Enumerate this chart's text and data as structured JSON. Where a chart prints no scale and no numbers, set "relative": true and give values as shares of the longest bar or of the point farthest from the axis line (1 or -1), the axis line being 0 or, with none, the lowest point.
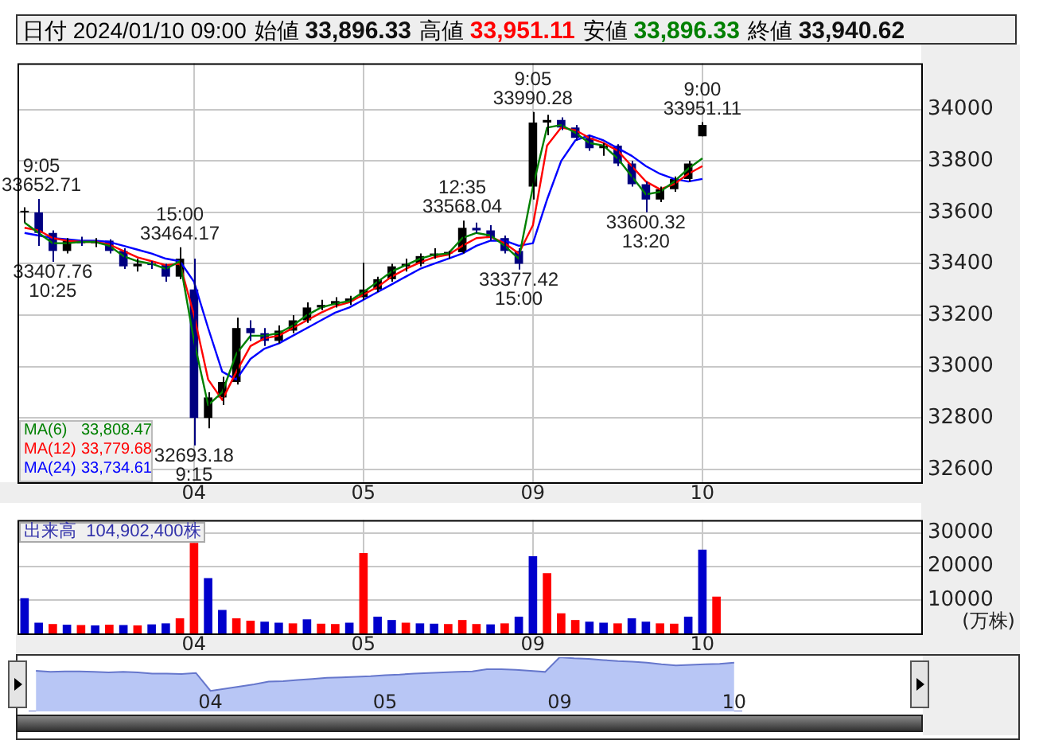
{
  "chart_data": [
    {
      "type": "candlestick",
      "title": "日付 2024/01/10 09:00",
      "annotations": [
        "始値 33,896.33",
        "高値 33,951.11",
        "安値 33,896.33",
        "終値 33,940.62",
        {
          "text": "9:05\n33652.71",
          "y": 33652.71
        },
        {
          "text": "33407.76\n10:25",
          "y": 33407.76
        },
        {
          "text": "15:00\n33464.17",
          "y": 33464.17
        },
        {
          "text": "32693.18\n9:15",
          "y": 32693.18
        },
        {
          "text": "12:35\n33568.04",
          "y": 33568.04
        },
        {
          "text": "33377.42\n15:00",
          "y": 33377.42
        },
        {
          "text": "9:05\n33990.28",
          "y": 33990.28
        },
        {
          "text": "33600.32\n13:20",
          "y": 33600.32
        },
        {
          "text": "9:00\n33951.11",
          "y": 33951.11
        }
      ],
      "categories": [
        null,
        null,
        null,
        null,
        null,
        null,
        null,
        null,
        null,
        null,
        null,
        null,
        "04",
        null,
        null,
        null,
        null,
        null,
        null,
        null,
        null,
        null,
        null,
        null,
        "05",
        null,
        null,
        null,
        null,
        null,
        null,
        null,
        null,
        null,
        null,
        null,
        "09",
        null,
        null,
        null,
        null,
        null,
        null,
        null,
        null,
        null,
        null,
        null,
        "10",
        null,
        null,
        null,
        null,
        null,
        null,
        null,
        null,
        null,
        null,
        null,
        null,
        null,
        null,
        null
      ],
      "ohlc": [
        [
          33600,
          33620,
          33560,
          33600
        ],
        [
          33600,
          33652.71,
          33470,
          33520
        ],
        [
          33520,
          33530,
          33407.76,
          33450
        ],
        [
          33450,
          33500,
          33440,
          33490
        ],
        [
          33490,
          33505,
          33470,
          33480
        ],
        [
          33480,
          33500,
          33465,
          33490
        ],
        [
          33490,
          33495,
          33440,
          33450
        ],
        [
          33450,
          33460,
          33380,
          33390
        ],
        [
          33390,
          33420,
          33370,
          33400
        ],
        [
          33400,
          33410,
          33380,
          33395
        ],
        [
          33395,
          33400,
          33330,
          33350
        ],
        [
          33350,
          33464.17,
          33340,
          33420
        ],
        [
          33300,
          33420,
          32693.18,
          32800
        ],
        [
          32800,
          32900,
          32760,
          32880
        ],
        [
          32880,
          32960,
          32850,
          32940
        ],
        [
          32940,
          33190,
          32930,
          33150
        ],
        [
          33150,
          33180,
          33100,
          33130
        ],
        [
          33130,
          33150,
          33080,
          33100
        ],
        [
          33100,
          33160,
          33090,
          33140
        ],
        [
          33140,
          33200,
          33130,
          33180
        ],
        [
          33180,
          33250,
          33170,
          33230
        ],
        [
          33230,
          33260,
          33220,
          33240
        ],
        [
          33240,
          33270,
          33230,
          33255
        ],
        [
          33255,
          33275,
          33240,
          33265
        ],
        [
          33270,
          33404,
          33260,
          33300
        ],
        [
          33300,
          33350,
          33290,
          33340
        ],
        [
          33340,
          33400,
          33330,
          33390
        ],
        [
          33390,
          33420,
          33370,
          33400
        ],
        [
          33400,
          33440,
          33390,
          33430
        ],
        [
          33430,
          33460,
          33420,
          33440
        ],
        [
          33440,
          33450,
          33420,
          33445
        ],
        [
          33445,
          33568.04,
          33440,
          33540
        ],
        [
          33540,
          33560,
          33520,
          33530
        ],
        [
          33530,
          33550,
          33490,
          33500
        ],
        [
          33500,
          33510,
          33440,
          33450
        ],
        [
          33450,
          33460,
          33377.42,
          33400
        ],
        [
          33700,
          33990.28,
          33650,
          33950
        ],
        [
          33950,
          33980,
          33900,
          33960
        ],
        [
          33960,
          33970,
          33920,
          33930
        ],
        [
          33930,
          33940,
          33880,
          33890
        ],
        [
          33890,
          33900,
          33840,
          33850
        ],
        [
          33850,
          33870,
          33820,
          33860
        ],
        [
          33860,
          33865,
          33780,
          33790
        ],
        [
          33790,
          33800,
          33700,
          33710
        ],
        [
          33710,
          33720,
          33600.32,
          33650
        ],
        [
          33650,
          33700,
          33640,
          33690
        ],
        [
          33690,
          33740,
          33680,
          33730
        ],
        [
          33730,
          33800,
          33720,
          33790
        ],
        [
          33896.33,
          33951.11,
          33896.33,
          33940.62
        ],
        null,
        null,
        null,
        null,
        null,
        null,
        null,
        null,
        null,
        null,
        null,
        null,
        null,
        null,
        null
      ],
      "series": [
        {
          "type": "line",
          "name": "MA(6) 33,808.47",
          "color": "#008000",
          "values": [
            33560,
            33520,
            33480,
            33480,
            33485,
            33485,
            33470,
            33430,
            33410,
            33400,
            33380,
            33410,
            33100,
            32850,
            32900,
            33050,
            33120,
            33120,
            33130,
            33160,
            33200,
            33230,
            33245,
            33255,
            33290,
            33330,
            33370,
            33395,
            33420,
            33435,
            33440,
            33500,
            33520,
            33510,
            33470,
            33420,
            33700,
            33930,
            33940,
            33910,
            33870,
            33860,
            33810,
            33740,
            33670,
            33680,
            33720,
            33770,
            33810,
            null,
            null,
            null,
            null,
            null,
            null,
            null,
            null,
            null,
            null,
            null,
            null,
            null,
            null,
            null
          ]
        },
        {
          "type": "line",
          "name": "MA(12) 33,779.68",
          "color": "#ff0000",
          "values": [
            33540,
            33530,
            33500,
            33490,
            33485,
            33485,
            33475,
            33450,
            33425,
            33410,
            33395,
            33400,
            33200,
            32950,
            32870,
            32980,
            33080,
            33110,
            33120,
            33150,
            33180,
            33210,
            33235,
            33250,
            33280,
            33310,
            33350,
            33380,
            33405,
            33425,
            33435,
            33470,
            33500,
            33505,
            33480,
            33440,
            33550,
            33860,
            33930,
            33920,
            33890,
            33870,
            33840,
            33780,
            33720,
            33690,
            33710,
            33750,
            33780,
            null,
            null,
            null,
            null,
            null,
            null,
            null,
            null,
            null,
            null,
            null,
            null,
            null,
            null,
            null
          ]
        },
        {
          "type": "line",
          "name": "MA(24) 33,734.61",
          "color": "#0000ff",
          "values": [
            33520,
            33510,
            33500,
            33495,
            33490,
            33490,
            33485,
            33470,
            33455,
            33440,
            33420,
            33410,
            33330,
            33150,
            32980,
            32950,
            33030,
            33070,
            33090,
            33120,
            33150,
            33180,
            33210,
            33230,
            33260,
            33290,
            33320,
            33350,
            33380,
            33400,
            33420,
            33440,
            33470,
            33490,
            33490,
            33470,
            33480,
            33650,
            33800,
            33880,
            33900,
            33880,
            33850,
            33820,
            33780,
            33750,
            33730,
            33720,
            33730,
            null,
            null,
            null,
            null,
            null,
            null,
            null,
            null,
            null,
            null,
            null,
            null,
            null,
            null,
            null
          ]
        }
      ],
      "ylim": [
        32550,
        34180
      ],
      "yticks": [
        32600,
        32800,
        33000,
        33200,
        33400,
        33600,
        33800,
        34000
      ],
      "grid": true,
      "legend": "bottom left"
    },
    {
      "type": "bar",
      "title": "出来高 104,902,400株",
      "ylabel": "(万株)",
      "categories": [
        null,
        null,
        null,
        null,
        null,
        null,
        null,
        null,
        null,
        null,
        null,
        null,
        "04",
        null,
        null,
        null,
        null,
        null,
        null,
        null,
        null,
        null,
        null,
        null,
        "05",
        null,
        null,
        null,
        null,
        null,
        null,
        null,
        null,
        null,
        null,
        null,
        "09",
        null,
        null,
        null,
        null,
        null,
        null,
        null,
        null,
        null,
        null,
        null,
        "10",
        null,
        null,
        null,
        null,
        null,
        null,
        null,
        null,
        null,
        null,
        null,
        null,
        null,
        null,
        null
      ],
      "values": [
        10500,
        3200,
        2800,
        2600,
        2500,
        2400,
        2600,
        2500,
        2400,
        2700,
        3000,
        4500,
        27000,
        16500,
        7000,
        4500,
        3800,
        3500,
        3200,
        3000,
        4200,
        2900,
        2800,
        3200,
        24000,
        5000,
        4000,
        3200,
        3000,
        2900,
        2800,
        4000,
        2800,
        2700,
        3000,
        5000,
        23000,
        18000,
        6000,
        4000,
        3500,
        3200,
        3000,
        4500,
        3500,
        3000,
        2900,
        5000,
        25000,
        11000,
        null,
        null,
        null,
        null,
        null,
        null,
        null,
        null,
        null,
        null,
        null,
        null,
        null,
        null
      ],
      "colors": [
        "#0000cc",
        "#0000cc",
        "#ff0000",
        "#0000cc",
        "#ff0000",
        "#0000cc",
        "#ff0000",
        "#0000cc",
        "#ff0000",
        "#0000cc",
        "#0000cc",
        "#ff0000",
        "#ff0000",
        "#0000cc",
        "#0000cc",
        "#ff0000",
        "#ff0000",
        "#0000cc",
        "#0000cc",
        "#ff0000",
        "#0000cc",
        "#ff0000",
        "#ff0000",
        "#0000cc",
        "#ff0000",
        "#0000cc",
        "#0000cc",
        "#ff0000",
        "#0000cc",
        "#0000cc",
        "#ff0000",
        "#ff0000",
        "#ff0000",
        "#0000cc",
        "#ff0000",
        "#0000cc",
        "#0000cc",
        "#ff0000",
        "#ff0000",
        "#ff0000",
        "#0000cc",
        "#0000cc",
        "#ff0000",
        "#0000cc",
        "#0000cc",
        "#ff0000",
        "#ff0000",
        "#0000cc",
        "#0000cc",
        "#ff0000",
        null,
        null,
        null,
        null,
        null,
        null,
        null,
        null,
        null,
        null,
        null,
        null,
        null,
        null
      ],
      "ylim": [
        0,
        33800
      ],
      "yticks": [
        10000,
        20000,
        30000
      ],
      "grid": true
    },
    {
      "type": "area",
      "relative": true,
      "color": "#b8c6f5",
      "categories": [
        null,
        null,
        null,
        null,
        null,
        null,
        null,
        null,
        null,
        null,
        null,
        null,
        "04",
        null,
        null,
        null,
        null,
        null,
        null,
        null,
        null,
        null,
        null,
        null,
        "05",
        null,
        null,
        null,
        null,
        null,
        null,
        null,
        null,
        null,
        null,
        null,
        "09",
        null,
        null,
        null,
        null,
        null,
        null,
        null,
        null,
        null,
        null,
        null,
        "10"
      ],
      "values": [
        0.75,
        0.73,
        0.74,
        0.74,
        0.73,
        0.72,
        0.73,
        0.72,
        0.7,
        0.7,
        0.69,
        0.71,
        0.38,
        0.42,
        0.46,
        0.5,
        0.55,
        0.56,
        0.58,
        0.6,
        0.62,
        0.63,
        0.64,
        0.65,
        0.67,
        0.68,
        0.7,
        0.71,
        0.72,
        0.73,
        0.74,
        0.78,
        0.78,
        0.77,
        0.75,
        0.73,
        1,
        0.98,
        0.97,
        0.95,
        0.93,
        0.92,
        0.9,
        0.87,
        0.85,
        0.86,
        0.87,
        0.88,
        0.9
      ]
    }
  ]
}
